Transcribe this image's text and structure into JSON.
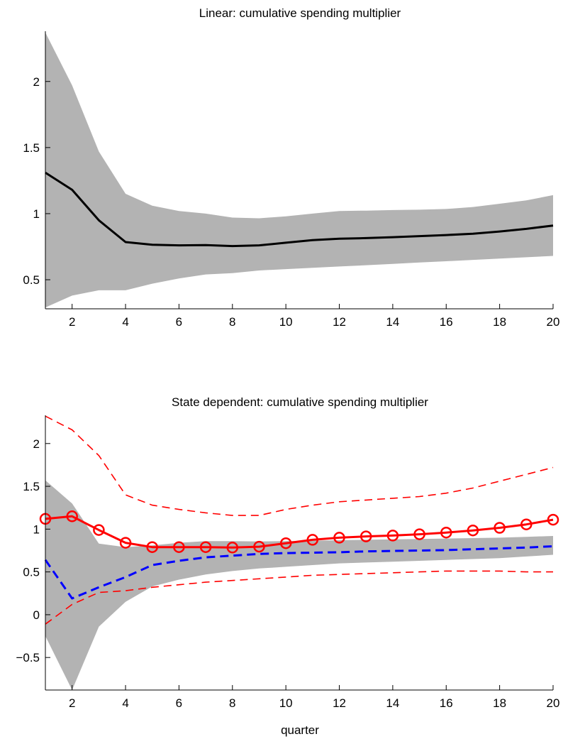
{
  "chart_data": [
    {
      "type": "line",
      "title": "Linear: cumulative spending multiplier",
      "xlabel": "",
      "ylabel": "",
      "xlim": [
        1,
        20
      ],
      "ylim": [
        0.28,
        2.38
      ],
      "xticks": [
        2,
        4,
        6,
        8,
        10,
        12,
        14,
        16,
        18,
        20
      ],
      "yticks": [
        0.5,
        1,
        1.5,
        2
      ],
      "ytick_labels": [
        "0.5",
        "1",
        "1.5",
        "2"
      ],
      "grid": false,
      "x": [
        1,
        2,
        3,
        4,
        5,
        6,
        7,
        8,
        9,
        10,
        11,
        12,
        13,
        14,
        15,
        16,
        17,
        18,
        19,
        20
      ],
      "band": {
        "upper": [
          2.37,
          1.97,
          1.47,
          1.15,
          1.06,
          1.02,
          1.0,
          0.97,
          0.965,
          0.98,
          1.0,
          1.02,
          1.023,
          1.027,
          1.03,
          1.035,
          1.05,
          1.075,
          1.1,
          1.14
        ],
        "lower": [
          0.29,
          0.38,
          0.42,
          0.42,
          0.47,
          0.51,
          0.54,
          0.55,
          0.57,
          0.58,
          0.59,
          0.6,
          0.61,
          0.62,
          0.63,
          0.64,
          0.65,
          0.66,
          0.67,
          0.68
        ],
        "color": "#b3b3b3"
      },
      "series": [
        {
          "values": [
            1.31,
            1.18,
            0.95,
            0.785,
            0.765,
            0.76,
            0.762,
            0.755,
            0.76,
            0.78,
            0.8,
            0.81,
            0.815,
            0.822,
            0.83,
            0.838,
            0.848,
            0.865,
            0.885,
            0.91
          ],
          "color": "#000000",
          "style": "solid"
        }
      ]
    },
    {
      "type": "line",
      "title": "State dependent: cumulative spending multiplier",
      "xlabel": "quarter",
      "ylabel": "",
      "xlim": [
        1,
        20
      ],
      "ylim": [
        -0.88,
        2.33
      ],
      "xticks": [
        2,
        4,
        6,
        8,
        10,
        12,
        14,
        16,
        18,
        20
      ],
      "yticks": [
        -0.5,
        0,
        0.5,
        1,
        1.5,
        2
      ],
      "ytick_labels": [
        "−0.5",
        "0",
        "0.5",
        "1",
        "1.5",
        "2"
      ],
      "grid": false,
      "x": [
        1,
        2,
        3,
        4,
        5,
        6,
        7,
        8,
        9,
        10,
        11,
        12,
        13,
        14,
        15,
        16,
        17,
        18,
        19,
        20
      ],
      "band": {
        "upper": [
          1.57,
          1.3,
          0.83,
          0.79,
          0.81,
          0.84,
          0.86,
          0.86,
          0.855,
          0.86,
          0.865,
          0.87,
          0.875,
          0.88,
          0.885,
          0.89,
          0.895,
          0.9,
          0.91,
          0.92
        ],
        "lower": [
          -0.25,
          -0.88,
          -0.14,
          0.15,
          0.33,
          0.41,
          0.47,
          0.51,
          0.54,
          0.56,
          0.58,
          0.6,
          0.61,
          0.62,
          0.63,
          0.64,
          0.65,
          0.66,
          0.68,
          0.7
        ],
        "color": "#b3b3b3"
      },
      "series": [
        {
          "values": [
            1.12,
            1.15,
            0.99,
            0.84,
            0.79,
            0.79,
            0.79,
            0.785,
            0.795,
            0.835,
            0.875,
            0.9,
            0.915,
            0.925,
            0.94,
            0.96,
            0.985,
            1.015,
            1.055,
            1.11
          ],
          "color": "#ff0000",
          "style": "solid",
          "marker": "circle"
        },
        {
          "values": [
            2.32,
            2.16,
            1.86,
            1.4,
            1.28,
            1.23,
            1.19,
            1.16,
            1.16,
            1.23,
            1.28,
            1.32,
            1.34,
            1.36,
            1.38,
            1.42,
            1.48,
            1.56,
            1.64,
            1.72
          ],
          "color": "#ff0000",
          "style": "dashed-thin"
        },
        {
          "values": [
            -0.11,
            0.12,
            0.26,
            0.28,
            0.32,
            0.35,
            0.38,
            0.4,
            0.42,
            0.44,
            0.46,
            0.47,
            0.48,
            0.49,
            0.5,
            0.51,
            0.51,
            0.51,
            0.5,
            0.5
          ],
          "color": "#ff0000",
          "style": "dashed-thin"
        },
        {
          "values": [
            0.64,
            0.19,
            0.32,
            0.44,
            0.58,
            0.63,
            0.67,
            0.69,
            0.71,
            0.72,
            0.725,
            0.73,
            0.74,
            0.745,
            0.75,
            0.755,
            0.765,
            0.775,
            0.785,
            0.8
          ],
          "color": "#0000ff",
          "style": "dashed"
        }
      ]
    }
  ]
}
